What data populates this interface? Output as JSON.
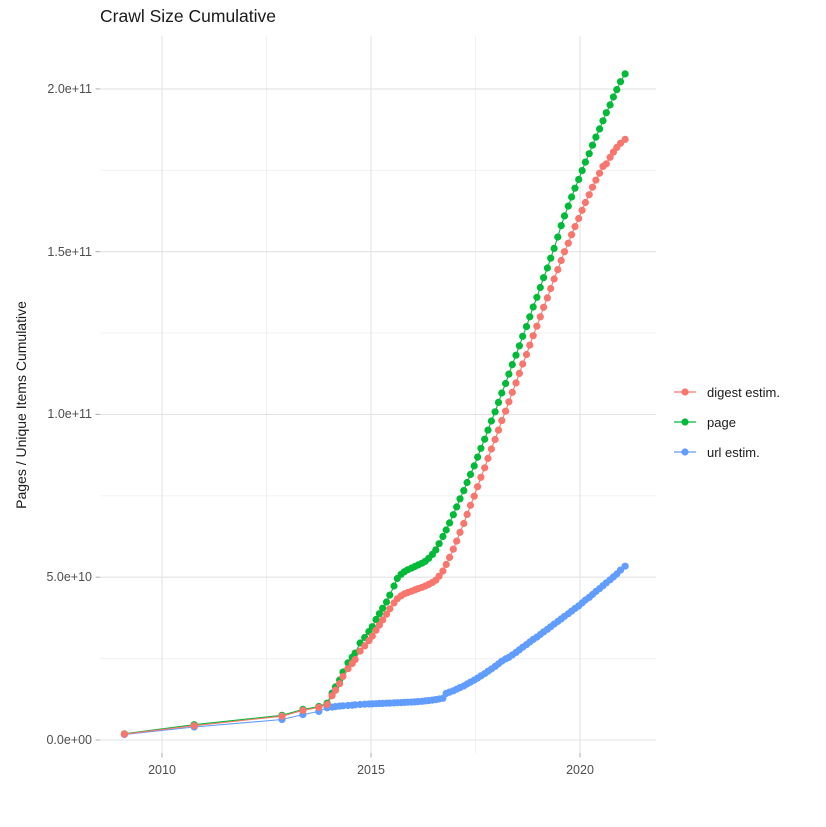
{
  "chart": {
    "title": "Crawl Size Cumulative",
    "ylabel": "Pages / Unique Items Cumulative",
    "xlabel": ""
  },
  "chart_data": {
    "type": "scatter",
    "title": "Crawl Size Cumulative",
    "xlabel": "",
    "ylabel": "Pages / Unique Items Cumulative",
    "grid": true,
    "legend_position": "right",
    "value_unit": "billions (1e9); y tick labels use scientific notation",
    "xlim": [
      2008.5,
      2021.8
    ],
    "ylim_e9": [
      -4,
      216
    ],
    "x_ticks": [
      {
        "label": "2010",
        "year": 2010
      },
      {
        "label": "2015",
        "year": 2015
      },
      {
        "label": "2020",
        "year": 2020
      }
    ],
    "y_ticks": [
      {
        "label": "0.0e+00",
        "value_e9": 0
      },
      {
        "label": "5.0e+10",
        "value_e9": 50
      },
      {
        "label": "1.0e+11",
        "value_e9": 100
      },
      {
        "label": "1.5e+11",
        "value_e9": 150
      },
      {
        "label": "2.0e+11",
        "value_e9": 200
      }
    ],
    "x_minor": [
      2012.5,
      2017.5
    ],
    "y_minor_e9": [
      25,
      75,
      125,
      175
    ],
    "series": [
      {
        "name": "digest estim.",
        "color": "#F8766D",
        "points": [
          [
            2009.1,
            1.8
          ],
          [
            2010.77,
            4.4
          ],
          [
            2012.87,
            7.3
          ],
          [
            2013.37,
            9.1
          ],
          [
            2013.75,
            10.0
          ],
          [
            2013.95,
            10.9
          ],
          [
            2014.07,
            13.6
          ],
          [
            2014.15,
            15.3
          ],
          [
            2014.25,
            17.3
          ],
          [
            2014.33,
            19.5
          ],
          [
            2014.45,
            21.9
          ],
          [
            2014.55,
            23.5
          ],
          [
            2014.62,
            24.7
          ],
          [
            2014.74,
            27.3
          ],
          [
            2014.85,
            28.9
          ],
          [
            2014.95,
            30.5
          ],
          [
            2015.03,
            31.9
          ],
          [
            2015.12,
            33.7
          ],
          [
            2015.2,
            35.3
          ],
          [
            2015.28,
            36.9
          ],
          [
            2015.37,
            38.6
          ],
          [
            2015.45,
            40.3
          ],
          [
            2015.55,
            42.1
          ],
          [
            2015.63,
            43.4
          ],
          [
            2015.72,
            44.3
          ],
          [
            2015.8,
            44.9
          ],
          [
            2015.88,
            45.3
          ],
          [
            2015.97,
            45.7
          ],
          [
            2016.05,
            46.1
          ],
          [
            2016.13,
            46.5
          ],
          [
            2016.22,
            46.9
          ],
          [
            2016.3,
            47.3
          ],
          [
            2016.38,
            47.8
          ],
          [
            2016.47,
            48.4
          ],
          [
            2016.55,
            49.1
          ],
          [
            2016.63,
            50.3
          ],
          [
            2016.72,
            51.9
          ],
          [
            2016.8,
            53.9
          ],
          [
            2016.88,
            56.1
          ],
          [
            2016.97,
            58.6
          ],
          [
            2017.05,
            61.1
          ],
          [
            2017.13,
            63.8
          ],
          [
            2017.22,
            66.5
          ],
          [
            2017.3,
            69.3
          ],
          [
            2017.38,
            72.1
          ],
          [
            2017.47,
            74.9
          ],
          [
            2017.55,
            77.8
          ],
          [
            2017.63,
            80.7
          ],
          [
            2017.72,
            83.6
          ],
          [
            2017.8,
            86.5
          ],
          [
            2017.88,
            89.4
          ],
          [
            2017.97,
            92.3
          ],
          [
            2018.05,
            95.2
          ],
          [
            2018.13,
            98.1
          ],
          [
            2018.22,
            101.0
          ],
          [
            2018.3,
            103.9
          ],
          [
            2018.38,
            106.8
          ],
          [
            2018.47,
            109.7
          ],
          [
            2018.55,
            112.6
          ],
          [
            2018.63,
            115.5
          ],
          [
            2018.72,
            118.4
          ],
          [
            2018.8,
            121.3
          ],
          [
            2018.88,
            124.2
          ],
          [
            2018.97,
            127.1
          ],
          [
            2019.05,
            130.0
          ],
          [
            2019.13,
            132.9
          ],
          [
            2019.22,
            135.8
          ],
          [
            2019.3,
            138.7
          ],
          [
            2019.38,
            141.6
          ],
          [
            2019.47,
            144.5
          ],
          [
            2019.55,
            147.3
          ],
          [
            2019.63,
            150.0
          ],
          [
            2019.72,
            152.6
          ],
          [
            2019.8,
            155.2
          ],
          [
            2019.88,
            157.7
          ],
          [
            2019.97,
            160.2
          ],
          [
            2020.05,
            162.7
          ],
          [
            2020.13,
            165.1
          ],
          [
            2020.22,
            167.5
          ],
          [
            2020.3,
            169.8
          ],
          [
            2020.38,
            172.0
          ],
          [
            2020.47,
            174.1
          ],
          [
            2020.55,
            176.2
          ],
          [
            2020.63,
            177.0
          ],
          [
            2020.72,
            179.0
          ],
          [
            2020.8,
            180.6
          ],
          [
            2020.88,
            182.0
          ],
          [
            2020.97,
            183.3
          ],
          [
            2021.08,
            184.5
          ]
        ]
      },
      {
        "name": "page",
        "color": "#00BA38",
        "points": [
          [
            2009.1,
            1.9
          ],
          [
            2010.77,
            4.7
          ],
          [
            2012.87,
            7.6
          ],
          [
            2013.37,
            9.4
          ],
          [
            2013.75,
            10.3
          ],
          [
            2013.95,
            11.3
          ],
          [
            2014.07,
            14.4
          ],
          [
            2014.15,
            16.3
          ],
          [
            2014.25,
            18.4
          ],
          [
            2014.33,
            20.9
          ],
          [
            2014.45,
            23.7
          ],
          [
            2014.55,
            25.4
          ],
          [
            2014.62,
            26.7
          ],
          [
            2014.74,
            29.8
          ],
          [
            2014.85,
            31.5
          ],
          [
            2014.95,
            33.3
          ],
          [
            2015.03,
            34.8
          ],
          [
            2015.12,
            37.0
          ],
          [
            2015.2,
            38.8
          ],
          [
            2015.28,
            40.5
          ],
          [
            2015.37,
            42.4
          ],
          [
            2015.45,
            44.5
          ],
          [
            2015.55,
            47.3
          ],
          [
            2015.63,
            49.6
          ],
          [
            2015.72,
            50.9
          ],
          [
            2015.8,
            51.7
          ],
          [
            2015.88,
            52.3
          ],
          [
            2015.97,
            52.8
          ],
          [
            2016.05,
            53.3
          ],
          [
            2016.13,
            53.8
          ],
          [
            2016.22,
            54.3
          ],
          [
            2016.3,
            54.9
          ],
          [
            2016.38,
            55.8
          ],
          [
            2016.47,
            57.0
          ],
          [
            2016.55,
            58.4
          ],
          [
            2016.63,
            60.3
          ],
          [
            2016.72,
            62.5
          ],
          [
            2016.8,
            64.5
          ],
          [
            2016.88,
            66.7
          ],
          [
            2016.97,
            69.2
          ],
          [
            2017.05,
            71.6
          ],
          [
            2017.13,
            74.1
          ],
          [
            2017.22,
            76.6
          ],
          [
            2017.3,
            79.1
          ],
          [
            2017.38,
            81.6
          ],
          [
            2017.47,
            84.2
          ],
          [
            2017.55,
            86.9
          ],
          [
            2017.63,
            89.6
          ],
          [
            2017.72,
            92.4
          ],
          [
            2017.8,
            95.2
          ],
          [
            2017.88,
            98.0
          ],
          [
            2017.97,
            100.8
          ],
          [
            2018.05,
            103.7
          ],
          [
            2018.13,
            106.6
          ],
          [
            2018.22,
            109.5
          ],
          [
            2018.3,
            112.4
          ],
          [
            2018.38,
            115.3
          ],
          [
            2018.47,
            118.2
          ],
          [
            2018.55,
            121.1
          ],
          [
            2018.63,
            124.0
          ],
          [
            2018.72,
            127.0
          ],
          [
            2018.8,
            130.0
          ],
          [
            2018.88,
            133.0
          ],
          [
            2018.97,
            136.0
          ],
          [
            2019.05,
            139.0
          ],
          [
            2019.13,
            142.0
          ],
          [
            2019.22,
            145.0
          ],
          [
            2019.3,
            148.0
          ],
          [
            2019.38,
            151.0
          ],
          [
            2019.47,
            154.5
          ],
          [
            2019.55,
            158.0
          ],
          [
            2019.63,
            161.0
          ],
          [
            2019.72,
            164.0
          ],
          [
            2019.8,
            166.8
          ],
          [
            2019.88,
            169.5
          ],
          [
            2019.97,
            172.2
          ],
          [
            2020.05,
            174.9
          ],
          [
            2020.13,
            177.5
          ],
          [
            2020.22,
            180.1
          ],
          [
            2020.3,
            182.7
          ],
          [
            2020.38,
            185.2
          ],
          [
            2020.47,
            187.7
          ],
          [
            2020.55,
            190.2
          ],
          [
            2020.63,
            192.7
          ],
          [
            2020.72,
            195.1
          ],
          [
            2020.8,
            197.5
          ],
          [
            2020.88,
            199.8
          ],
          [
            2020.97,
            202.2
          ],
          [
            2021.08,
            204.6
          ]
        ]
      },
      {
        "name": "url estim.",
        "color": "#619CFF",
        "points": [
          [
            2009.1,
            1.7
          ],
          [
            2010.77,
            4.0
          ],
          [
            2012.87,
            6.3
          ],
          [
            2013.37,
            7.8
          ],
          [
            2013.75,
            8.8
          ],
          [
            2013.95,
            9.9
          ],
          [
            2014.07,
            10.1
          ],
          [
            2014.15,
            10.25
          ],
          [
            2014.25,
            10.4
          ],
          [
            2014.33,
            10.5
          ],
          [
            2014.45,
            10.6
          ],
          [
            2014.55,
            10.7
          ],
          [
            2014.62,
            10.8
          ],
          [
            2014.74,
            10.9
          ],
          [
            2014.85,
            11.0
          ],
          [
            2014.95,
            11.05
          ],
          [
            2015.03,
            11.1
          ],
          [
            2015.12,
            11.15
          ],
          [
            2015.2,
            11.2
          ],
          [
            2015.28,
            11.25
          ],
          [
            2015.37,
            11.3
          ],
          [
            2015.45,
            11.35
          ],
          [
            2015.55,
            11.4
          ],
          [
            2015.63,
            11.45
          ],
          [
            2015.72,
            11.5
          ],
          [
            2015.8,
            11.55
          ],
          [
            2015.88,
            11.6
          ],
          [
            2015.97,
            11.65
          ],
          [
            2016.05,
            11.7
          ],
          [
            2016.13,
            11.8
          ],
          [
            2016.22,
            11.9
          ],
          [
            2016.3,
            12.0
          ],
          [
            2016.38,
            12.1
          ],
          [
            2016.47,
            12.25
          ],
          [
            2016.55,
            12.4
          ],
          [
            2016.63,
            12.6
          ],
          [
            2016.72,
            12.8
          ],
          [
            2016.8,
            14.3
          ],
          [
            2016.88,
            14.7
          ],
          [
            2016.97,
            15.1
          ],
          [
            2017.05,
            15.6
          ],
          [
            2017.13,
            16.1
          ],
          [
            2017.22,
            16.6
          ],
          [
            2017.3,
            17.2
          ],
          [
            2017.38,
            17.8
          ],
          [
            2017.47,
            18.4
          ],
          [
            2017.55,
            19.0
          ],
          [
            2017.63,
            19.7
          ],
          [
            2017.72,
            20.4
          ],
          [
            2017.8,
            21.1
          ],
          [
            2017.88,
            21.8
          ],
          [
            2017.97,
            22.6
          ],
          [
            2018.05,
            23.4
          ],
          [
            2018.13,
            24.2
          ],
          [
            2018.22,
            24.9
          ],
          [
            2018.3,
            25.4
          ],
          [
            2018.38,
            26.1
          ],
          [
            2018.47,
            26.9
          ],
          [
            2018.55,
            27.7
          ],
          [
            2018.63,
            28.5
          ],
          [
            2018.72,
            29.3
          ],
          [
            2018.8,
            30.1
          ],
          [
            2018.88,
            30.9
          ],
          [
            2018.97,
            31.6
          ],
          [
            2019.05,
            32.4
          ],
          [
            2019.13,
            33.2
          ],
          [
            2019.22,
            34.0
          ],
          [
            2019.3,
            34.8
          ],
          [
            2019.38,
            35.6
          ],
          [
            2019.47,
            36.4
          ],
          [
            2019.55,
            37.2
          ],
          [
            2019.63,
            38.0
          ],
          [
            2019.72,
            38.8
          ],
          [
            2019.8,
            39.6
          ],
          [
            2019.88,
            40.4
          ],
          [
            2019.97,
            41.2
          ],
          [
            2020.05,
            42.1
          ],
          [
            2020.13,
            43.0
          ],
          [
            2020.22,
            43.8
          ],
          [
            2020.3,
            44.7
          ],
          [
            2020.38,
            45.6
          ],
          [
            2020.47,
            46.5
          ],
          [
            2020.55,
            47.4
          ],
          [
            2020.63,
            48.3
          ],
          [
            2020.72,
            49.2
          ],
          [
            2020.8,
            50.1
          ],
          [
            2020.88,
            51.0
          ],
          [
            2020.97,
            52.2
          ],
          [
            2021.08,
            53.4
          ]
        ]
      }
    ]
  },
  "legend": {
    "entries": [
      "digest estim.",
      "page",
      "url estim."
    ]
  },
  "colors": {
    "digest": "#F8766D",
    "page": "#00BA38",
    "url": "#619CFF",
    "grid_major": "#e3e3e3",
    "grid_minor": "#f0f0f0",
    "tick_mark": "#b3b3b3",
    "tick_text": "#4d4d4d"
  }
}
